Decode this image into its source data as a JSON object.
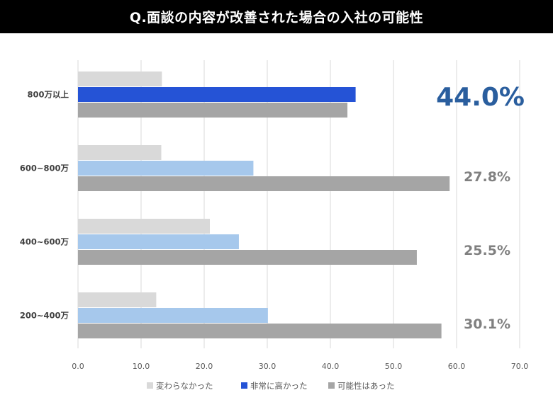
{
  "header": {
    "title": "Q.面談の内容が改善された場合の入社の可能性"
  },
  "chart_data": {
    "type": "bar",
    "orientation": "horizontal",
    "categories": [
      "800万以上",
      "600~800万",
      "400~600万",
      "200~400万"
    ],
    "series": [
      {
        "name": "変わらなかった",
        "values": [
          13.3,
          13.2,
          20.9,
          12.4
        ],
        "color": "#d9d9d9"
      },
      {
        "name": "非常に高かった",
        "values": [
          44.0,
          27.8,
          25.5,
          30.1
        ],
        "color": "#a6c8ec",
        "highlight_color": "#2553d6"
      },
      {
        "name": "可能性はあった",
        "values": [
          42.7,
          58.9,
          53.7,
          57.6
        ],
        "color": "#a5a5a5"
      }
    ],
    "highlight": {
      "category_index": 0,
      "series_index": 1
    },
    "annotations": [
      {
        "category": "800万以上",
        "label": "44.0%",
        "emphasis": true,
        "color": "#2a5e9e"
      },
      {
        "category": "600~800万",
        "label": "27.8%",
        "emphasis": false,
        "color": "#808080"
      },
      {
        "category": "400~600万",
        "label": "25.5%",
        "emphasis": false,
        "color": "#808080"
      },
      {
        "category": "200~400万",
        "label": "30.1%",
        "emphasis": false,
        "color": "#808080"
      }
    ],
    "x_ticks": [
      "0.0",
      "10.0",
      "20.0",
      "30.0",
      "40.0",
      "50.0",
      "60.0",
      "70.0"
    ],
    "xlim": [
      0,
      70
    ],
    "grid": true,
    "legend_position": "bottom"
  }
}
